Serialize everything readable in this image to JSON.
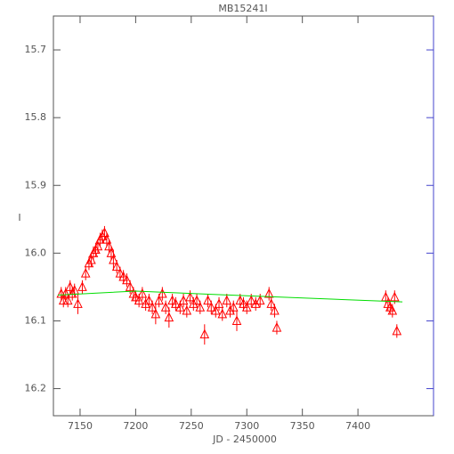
{
  "chart_data": {
    "type": "scatter",
    "title": "MB15241I",
    "x_label": "JD - 2450000",
    "y_label": "I",
    "xlim": [
      7126,
      7468
    ],
    "xticks": [
      7150,
      7200,
      7250,
      7300,
      7350,
      7400
    ],
    "ylim": [
      15.65,
      16.24
    ],
    "y_inverted": true,
    "yticks": [
      15.7,
      15.8,
      15.9,
      {
        "value": 16,
        "label": "16.0"
      },
      16.1,
      16.2
    ],
    "points": {
      "color": "#ff0000",
      "x": [
        7133,
        7135,
        7137,
        7139,
        7141,
        7143,
        7145,
        7148,
        7152,
        7155,
        7158,
        7160,
        7162,
        7164,
        7166,
        7168,
        7170,
        7172,
        7174,
        7176,
        7178,
        7180,
        7183,
        7186,
        7189,
        7192,
        7195,
        7198,
        7200,
        7203,
        7206,
        7209,
        7212,
        7215,
        7218,
        7221,
        7224,
        7227,
        7230,
        7233,
        7236,
        7240,
        7243,
        7246,
        7249,
        7252,
        7255,
        7258,
        7262,
        7265,
        7268,
        7272,
        7275,
        7278,
        7282,
        7285,
        7288,
        7291,
        7294,
        7297,
        7300,
        7304,
        7308,
        7312,
        7320,
        7322,
        7325,
        7327,
        7425,
        7427,
        7429,
        7431,
        7433,
        7435
      ],
      "y": [
        16.06,
        16.07,
        16.06,
        16.07,
        16.05,
        16.06,
        16.055,
        16.075,
        16.05,
        16.03,
        16.015,
        16.01,
        16.0,
        15.995,
        15.99,
        15.98,
        15.975,
        15.97,
        15.98,
        15.99,
        16.0,
        16.01,
        16.02,
        16.03,
        16.035,
        16.04,
        16.05,
        16.06,
        16.065,
        16.07,
        16.06,
        16.075,
        16.07,
        16.08,
        16.09,
        16.07,
        16.06,
        16.08,
        16.095,
        16.07,
        16.075,
        16.08,
        16.07,
        16.085,
        16.065,
        16.075,
        16.07,
        16.08,
        16.12,
        16.07,
        16.08,
        16.085,
        16.075,
        16.09,
        16.07,
        16.085,
        16.08,
        16.1,
        16.07,
        16.075,
        16.08,
        16.07,
        16.075,
        16.07,
        16.06,
        16.075,
        16.085,
        16.11,
        16.065,
        16.075,
        16.08,
        16.085,
        16.065,
        16.115
      ],
      "err": [
        0.01,
        0.01,
        0.01,
        0.01,
        0.01,
        0.01,
        0.01,
        0.015,
        0.01,
        0.01,
        0.01,
        0.01,
        0.01,
        0.01,
        0.01,
        0.01,
        0.01,
        0.01,
        0.01,
        0.01,
        0.01,
        0.015,
        0.01,
        0.01,
        0.01,
        0.01,
        0.01,
        0.01,
        0.01,
        0.01,
        0.01,
        0.01,
        0.01,
        0.01,
        0.015,
        0.01,
        0.01,
        0.01,
        0.015,
        0.01,
        0.01,
        0.01,
        0.01,
        0.01,
        0.01,
        0.01,
        0.01,
        0.01,
        0.015,
        0.01,
        0.01,
        0.01,
        0.01,
        0.01,
        0.01,
        0.01,
        0.01,
        0.015,
        0.01,
        0.01,
        0.01,
        0.01,
        0.01,
        0.01,
        0.01,
        0.01,
        0.01,
        0.01,
        0.01,
        0.01,
        0.01,
        0.01,
        0.01,
        0.01
      ]
    },
    "model": {
      "color": "#00dd00",
      "x": [
        7130,
        7200,
        7300,
        7440
      ],
      "y": [
        16.062,
        16.056,
        16.063,
        16.072
      ]
    }
  }
}
